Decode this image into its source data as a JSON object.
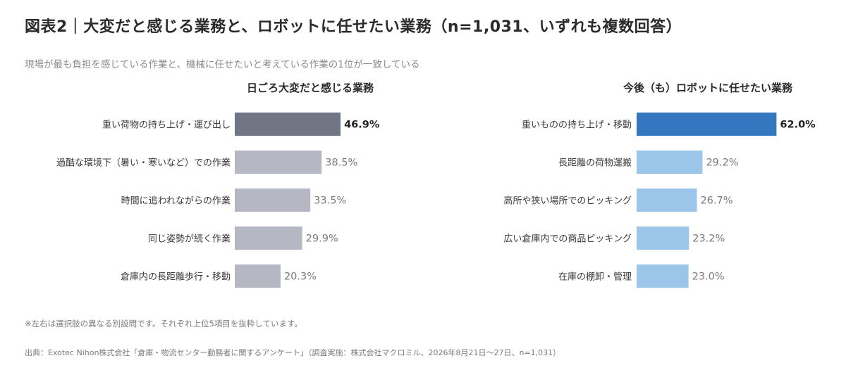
{
  "title": "図表2｜大変だと感じる業務と、ロボットに任せたい業務（n=1,031、いずれも複数回答）",
  "subtitle": "現場が最も負担を感じている作業と、機械に任せたいと考えている作業の1位が一致している",
  "note": "※左右は選択肢の異なる別設問です。それぞれ上位5項目を抜粋しています。",
  "source": "出典：Exotec Nihon株式会社「倉庫・物流センター勤務者に関するアンケート」（調査実施：株式会社マクロミル、2026年8月21日〜27日、n=1,031）",
  "chart_data": [
    {
      "type": "bar",
      "orientation": "horizontal",
      "title": "日ごろ大変だと感じる業務",
      "categories": [
        "重い荷物の持ち上げ・運び出し",
        "過酷な環境下（暑い・寒いなど）での作業",
        "時間に追われながらの作業",
        "同じ姿勢が続く作業",
        "倉庫内の長距離歩行・移動"
      ],
      "values": [
        46.9,
        38.5,
        33.5,
        29.9,
        20.3
      ],
      "value_labels": [
        "46.9%",
        "38.5%",
        "33.5%",
        "29.9%",
        "20.3%"
      ],
      "unit": "%",
      "colors": {
        "highlight": "#727684",
        "default": "#b5b7c2"
      },
      "grid": false
    },
    {
      "type": "bar",
      "orientation": "horizontal",
      "title": "今後（も）ロボットに任せたい業務",
      "categories": [
        "重いものの持ち上げ・移動",
        "長距離の荷物運搬",
        "高所や狭い場所でのピッキング",
        "広い倉庫内での商品ピッキング",
        "在庫の棚卸・管理"
      ],
      "values": [
        62.0,
        29.2,
        26.7,
        23.2,
        23.0
      ],
      "value_labels": [
        "62.0%",
        "29.2%",
        "26.7%",
        "23.2%",
        "23.0%"
      ],
      "unit": "%",
      "colors": {
        "highlight": "#3576c0",
        "default": "#9cc5ea"
      },
      "grid": false
    }
  ]
}
